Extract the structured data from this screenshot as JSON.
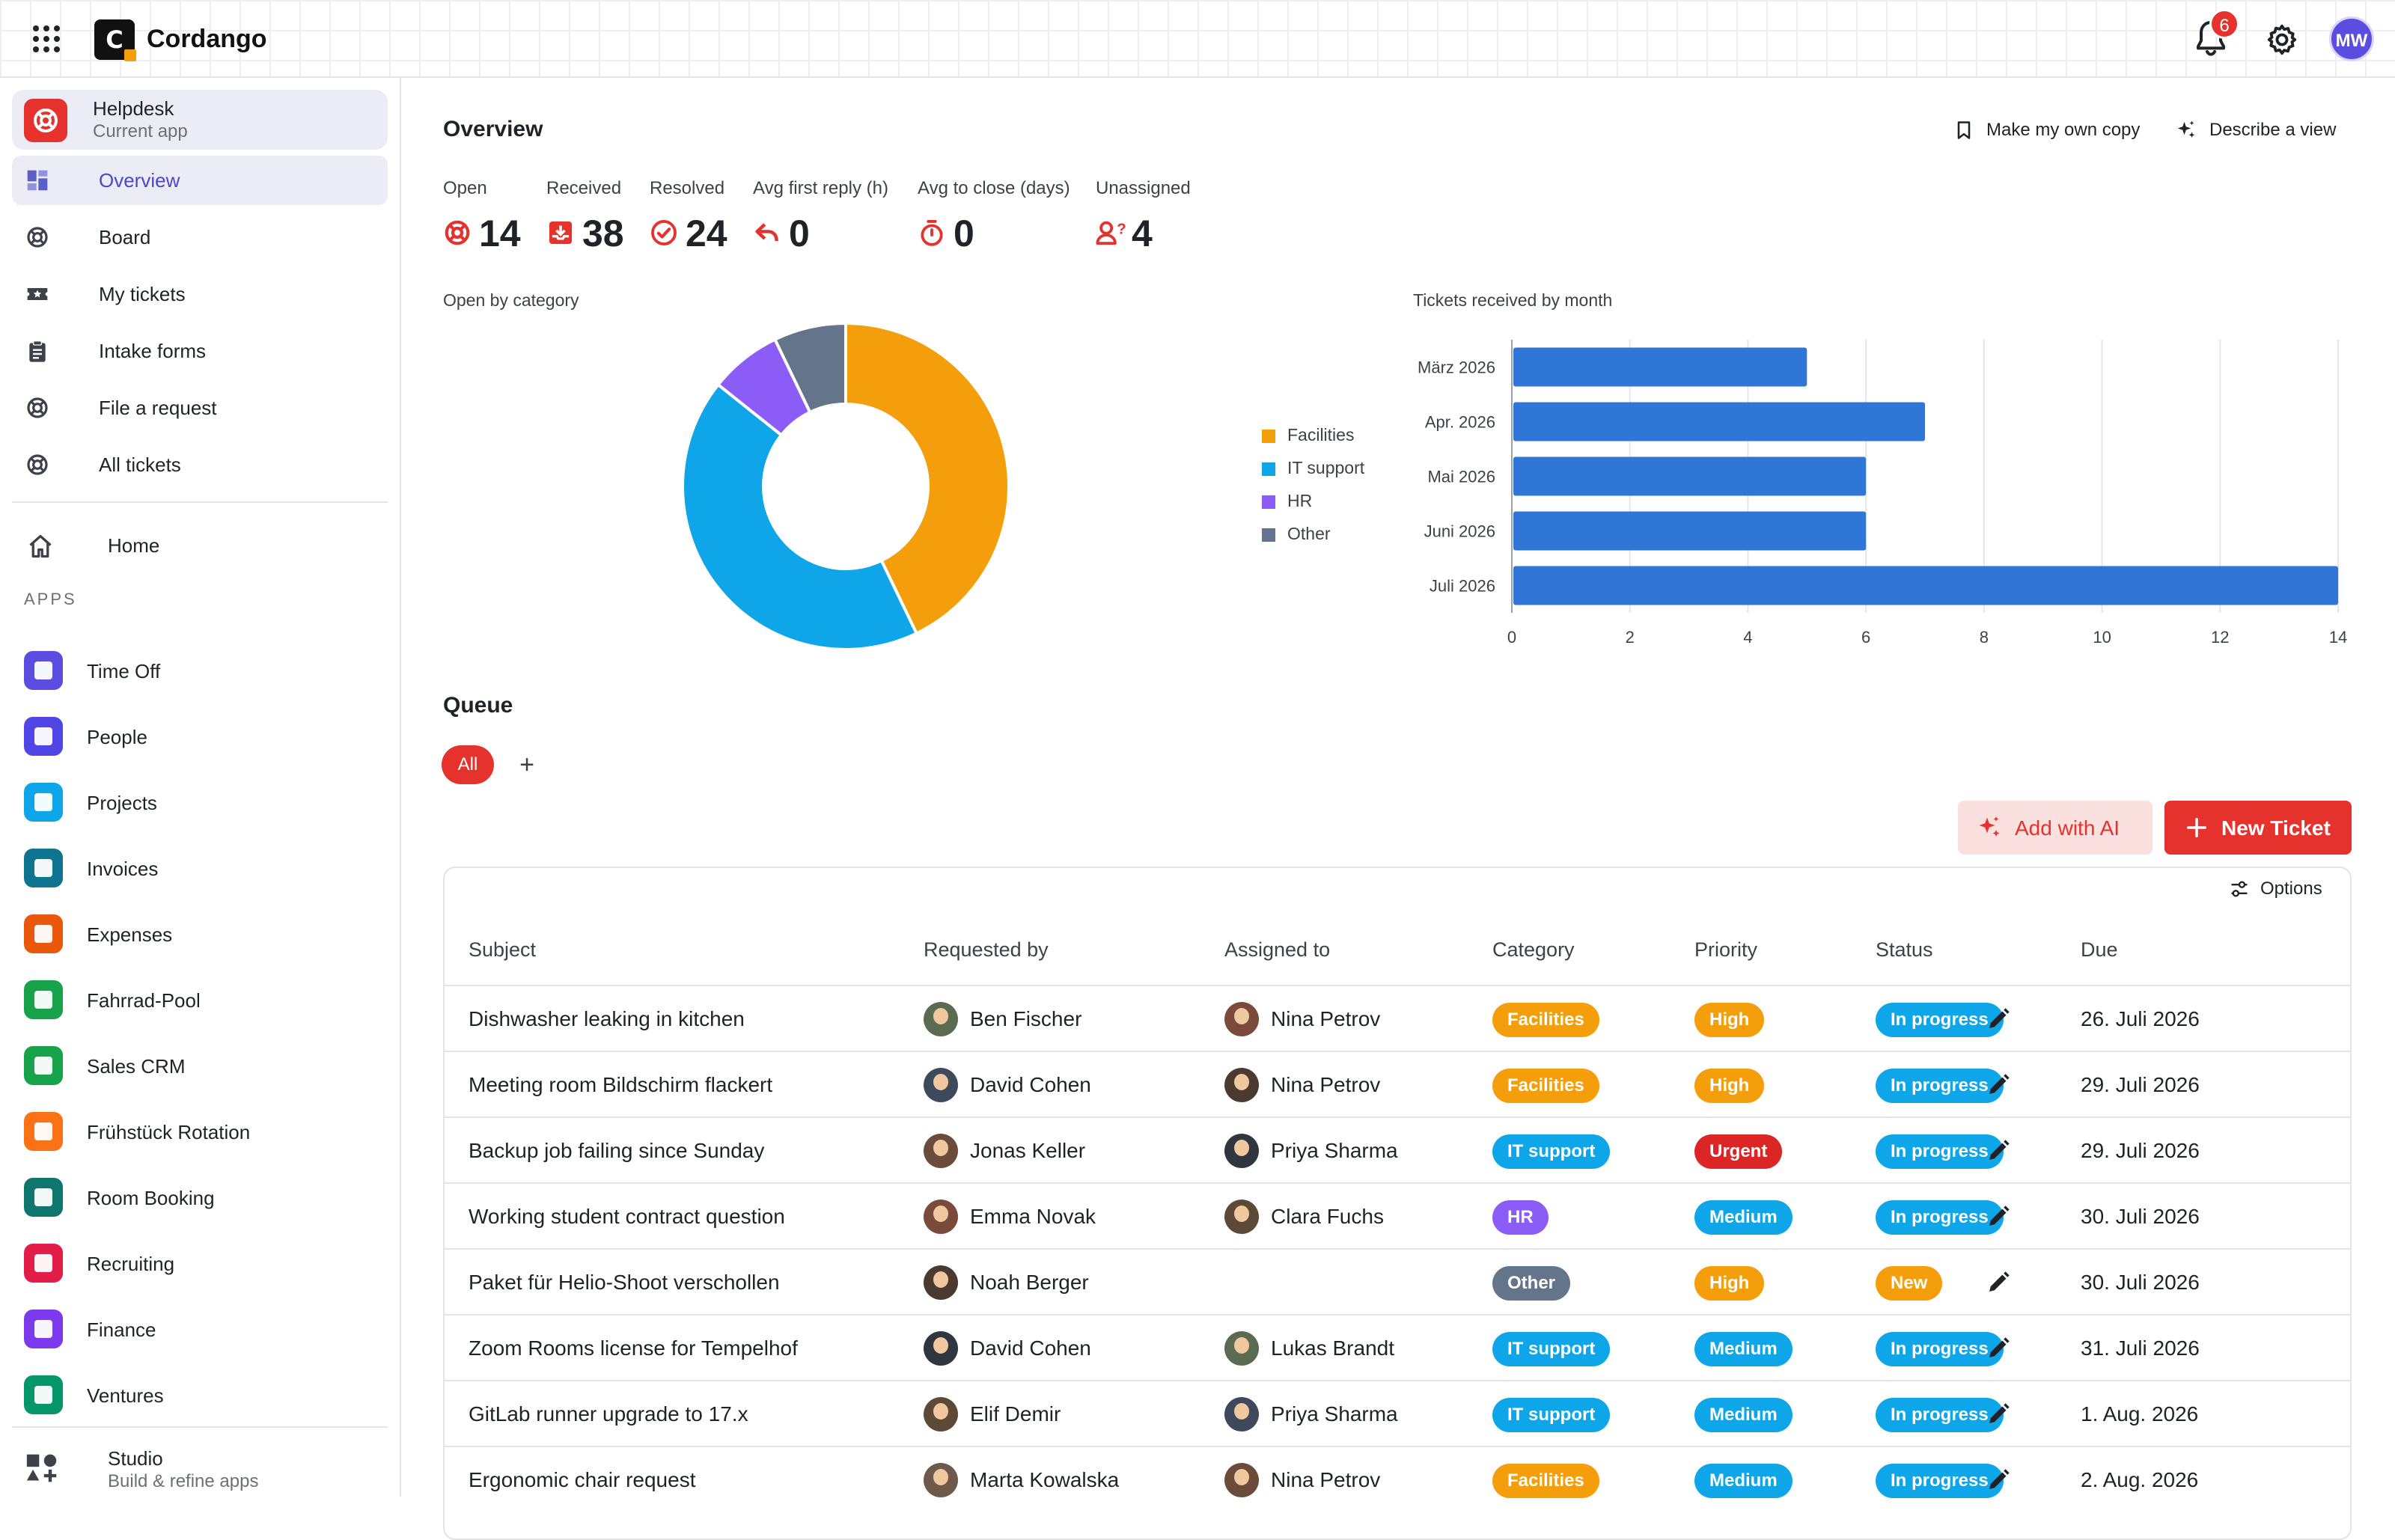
{
  "app": {
    "brand": "Cordango",
    "logo_letter": "C",
    "notifications": "6",
    "user_initials": "MW"
  },
  "sidebar": {
    "current_app": {
      "title": "Helpdesk",
      "subtitle": "Current app"
    },
    "nav": [
      {
        "label": "Overview",
        "icon": "dashboard-icon",
        "active": true
      },
      {
        "label": "Board",
        "icon": "lifebuoy-icon"
      },
      {
        "label": "My tickets",
        "icon": "star-ticket-icon"
      },
      {
        "label": "Intake forms",
        "icon": "clipboard-icon"
      },
      {
        "label": "File a request",
        "icon": "lifebuoy-icon"
      },
      {
        "label": "All tickets",
        "icon": "lifebuoy-icon"
      }
    ],
    "home_label": "Home",
    "apps_heading": "APPS",
    "apps": [
      {
        "label": "Time Off",
        "color": "#5b4de0"
      },
      {
        "label": "People",
        "color": "#4f46e5"
      },
      {
        "label": "Projects",
        "color": "#0ea5e9"
      },
      {
        "label": "Invoices",
        "color": "#0e7490"
      },
      {
        "label": "Expenses",
        "color": "#ea580c"
      },
      {
        "label": "Fahrrad-Pool",
        "color": "#16a34a"
      },
      {
        "label": "Sales CRM",
        "color": "#16a34a"
      },
      {
        "label": "Frühstück Rotation",
        "color": "#f97316"
      },
      {
        "label": "Room Booking",
        "color": "#0f766e"
      },
      {
        "label": "Recruiting",
        "color": "#e11d48"
      },
      {
        "label": "Finance",
        "color": "#7c3aed"
      },
      {
        "label": "Ventures",
        "color": "#059669"
      }
    ],
    "studio": {
      "title": "Studio",
      "subtitle": "Build & refine apps"
    }
  },
  "overview": {
    "title": "Overview",
    "actions": {
      "copy": "Make my own copy",
      "describe": "Describe a view"
    },
    "kpis": [
      {
        "label": "Open",
        "value": "14",
        "icon": "lifebuoy-icon"
      },
      {
        "label": "Received",
        "value": "38",
        "icon": "inbox-icon"
      },
      {
        "label": "Resolved",
        "value": "24",
        "icon": "check-circle-icon"
      },
      {
        "label": "Avg first reply (h)",
        "value": "0",
        "icon": "reply-icon"
      },
      {
        "label": "Avg to close (days)",
        "value": "0",
        "icon": "timer-icon"
      },
      {
        "label": "Unassigned",
        "value": "4",
        "icon": "user-question-icon"
      }
    ]
  },
  "chart_data": [
    {
      "type": "pie",
      "title": "Open by category",
      "donut": true,
      "legend": "right",
      "categories": [
        "Facilities",
        "IT support",
        "HR",
        "Other"
      ],
      "values": [
        6,
        6,
        1,
        1
      ],
      "colors": [
        "#f59e0b",
        "#0ea5e9",
        "#8b5cf6",
        "#64748b"
      ]
    },
    {
      "type": "bar",
      "orientation": "horizontal",
      "title": "Tickets received by month",
      "categories": [
        "März 2026",
        "Apr. 2026",
        "Mai 2026",
        "Juni 2026",
        "Juli 2026"
      ],
      "values": [
        5,
        7,
        6,
        6,
        14
      ],
      "xlim": [
        0,
        14
      ],
      "xticks": [
        "0",
        "2",
        "4",
        "6",
        "8",
        "10",
        "12",
        "14"
      ],
      "grid": true,
      "color": "#2f76d6"
    }
  ],
  "queue": {
    "title": "Queue",
    "filter_all": "All",
    "add_filter": "+",
    "add_ai": "Add with AI",
    "new_ticket": "New Ticket",
    "options": "Options",
    "columns": [
      "Subject",
      "Requested by",
      "Assigned to",
      "Category",
      "Priority",
      "Status",
      "Due"
    ],
    "rows": [
      {
        "subject": "Dishwasher leaking in kitchen",
        "requested_by": "Ben Fischer",
        "assigned_to": "Nina Petrov",
        "category": "Facilities",
        "priority": "High",
        "status": "In progress",
        "due": "26. Juli 2026"
      },
      {
        "subject": "Meeting room Bildschirm flackert",
        "requested_by": "David Cohen",
        "assigned_to": "Nina Petrov",
        "category": "Facilities",
        "priority": "High",
        "status": "In progress",
        "due": "29. Juli 2026"
      },
      {
        "subject": "Backup job failing since Sunday",
        "requested_by": "Jonas Keller",
        "assigned_to": "Priya Sharma",
        "category": "IT support",
        "priority": "Urgent",
        "status": "In progress",
        "due": "29. Juli 2026"
      },
      {
        "subject": "Working student contract question",
        "requested_by": "Emma Novak",
        "assigned_to": "Clara Fuchs",
        "category": "HR",
        "priority": "Medium",
        "status": "In progress",
        "due": "30. Juli 2026"
      },
      {
        "subject": "Paket für Helio-Shoot verschollen",
        "requested_by": "Noah Berger",
        "assigned_to": "",
        "category": "Other",
        "priority": "High",
        "status": "New",
        "due": "30. Juli 2026"
      },
      {
        "subject": "Zoom Rooms license for Tempelhof",
        "requested_by": "David Cohen",
        "assigned_to": "Lukas Brandt",
        "category": "IT support",
        "priority": "Medium",
        "status": "In progress",
        "due": "31. Juli 2026"
      },
      {
        "subject": "GitLab runner upgrade to 17.x",
        "requested_by": "Elif Demir",
        "assigned_to": "Priya Sharma",
        "category": "IT support",
        "priority": "Medium",
        "status": "In progress",
        "due": "1. Aug. 2026"
      },
      {
        "subject": "Ergonomic chair request",
        "requested_by": "Marta Kowalska",
        "assigned_to": "Nina Petrov",
        "category": "Facilities",
        "priority": "Medium",
        "status": "In progress",
        "due": "2. Aug. 2026"
      }
    ],
    "badge_colors": {
      "Facilities": "#f59e0b",
      "IT support": "#0ea5e9",
      "HR": "#8b5cf6",
      "Other": "#64748b",
      "High": "#f59e0b",
      "Urgent": "#dc2626",
      "Medium": "#0ea5e9",
      "In progress": "#0ea5e9",
      "New": "#f59e0b"
    }
  }
}
